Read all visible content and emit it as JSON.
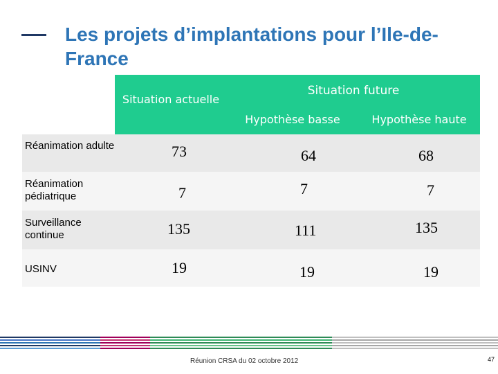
{
  "slide": {
    "title": "Les projets d’implantations pour l’Ile-de-France"
  },
  "table": {
    "header_current": "Situation actuelle",
    "header_future": "Situation future",
    "sub_low": "Hypothèse basse",
    "sub_high": "Hypothèse haute",
    "rows": [
      {
        "label": "Réanimation adulte",
        "current": "73",
        "low": "64",
        "high": "68"
      },
      {
        "label": "Réanimation pédiatrique",
        "current": "7",
        "low": "7",
        "high": "7"
      },
      {
        "label": "Surveillance continue",
        "current": "135",
        "low": "111",
        "high": "135"
      },
      {
        "label": "USINV",
        "current": "19",
        "low": "19",
        "high": "19"
      }
    ]
  },
  "footer": {
    "text": "Réunion CRSA du 02 octobre 2012",
    "page": "47"
  },
  "colors": {
    "accent_green": "#1fcc8f",
    "title_blue": "#2e75b6",
    "dash_navy": "#1f3864"
  }
}
